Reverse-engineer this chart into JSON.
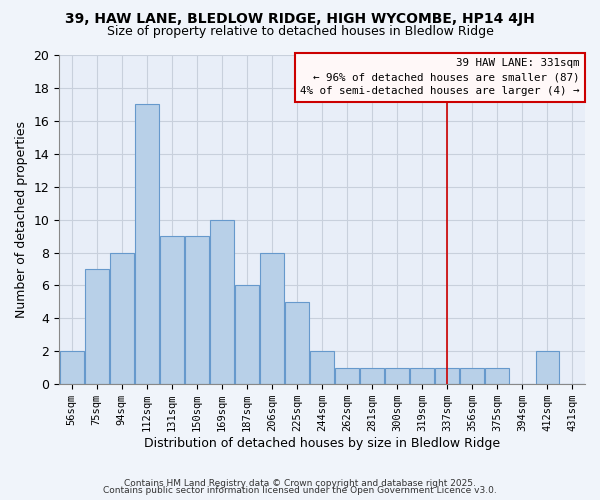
{
  "title_line1": "39, HAW LANE, BLEDLOW RIDGE, HIGH WYCOMBE, HP14 4JH",
  "title_line2": "Size of property relative to detached houses in Bledlow Ridge",
  "xlabel": "Distribution of detached houses by size in Bledlow Ridge",
  "ylabel": "Number of detached properties",
  "categories": [
    "56sqm",
    "75sqm",
    "94sqm",
    "112sqm",
    "131sqm",
    "150sqm",
    "169sqm",
    "187sqm",
    "206sqm",
    "225sqm",
    "244sqm",
    "262sqm",
    "281sqm",
    "300sqm",
    "319sqm",
    "337sqm",
    "356sqm",
    "375sqm",
    "394sqm",
    "412sqm",
    "431sqm"
  ],
  "values": [
    2,
    7,
    8,
    17,
    9,
    9,
    10,
    6,
    8,
    5,
    2,
    1,
    1,
    1,
    1,
    1,
    1,
    1,
    0,
    2,
    0
  ],
  "vline_position": 15.0,
  "annotation_title": "39 HAW LANE: 331sqm",
  "annotation_line1": "← 96% of detached houses are smaller (87)",
  "annotation_line2": "4% of semi-detached houses are larger (4) →",
  "annotation_box_color": "#fff8f8",
  "annotation_border_color": "#cc0000",
  "footer_line1": "Contains HM Land Registry data © Crown copyright and database right 2025.",
  "footer_line2": "Contains public sector information licensed under the Open Government Licence v3.0.",
  "ylim": [
    0,
    20
  ],
  "yticks": [
    0,
    2,
    4,
    6,
    8,
    10,
    12,
    14,
    16,
    18,
    20
  ],
  "bar_color": "#b8d0e8",
  "bar_edge_color": "#6699cc",
  "background_color": "#f0f4fa",
  "plot_bg_color": "#e8eef8",
  "grid_color": "#c8d0dc",
  "title_fontsize": 10,
  "subtitle_fontsize": 9
}
